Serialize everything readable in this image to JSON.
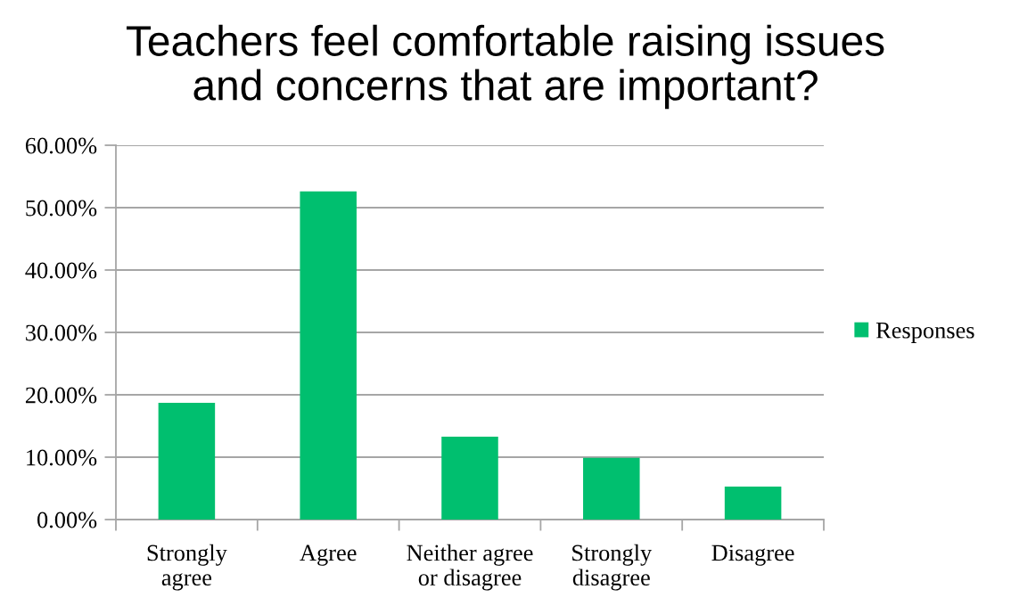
{
  "chart_data": {
    "type": "bar",
    "title": "Teachers feel comfortable raising issues\nand concerns that are important?",
    "categories": [
      "Strongly\nagree",
      "Agree",
      "Neither agree\nor disagree",
      "Strongly\ndisagree",
      "Disagree"
    ],
    "series": [
      {
        "name": "Responses",
        "color": "#00bf6f",
        "values": [
          18.7,
          52.6,
          13.3,
          9.9,
          5.3
        ]
      }
    ],
    "ylim": [
      0,
      60
    ],
    "yticks": [
      {
        "value": 0,
        "label": "0.00%"
      },
      {
        "value": 10,
        "label": "10.00%"
      },
      {
        "value": 20,
        "label": "20.00%"
      },
      {
        "value": 30,
        "label": "30.00%"
      },
      {
        "value": 40,
        "label": "40.00%"
      },
      {
        "value": 50,
        "label": "50.00%"
      },
      {
        "value": 60,
        "label": "60.00%"
      }
    ],
    "grid": "y",
    "legend": "right"
  }
}
